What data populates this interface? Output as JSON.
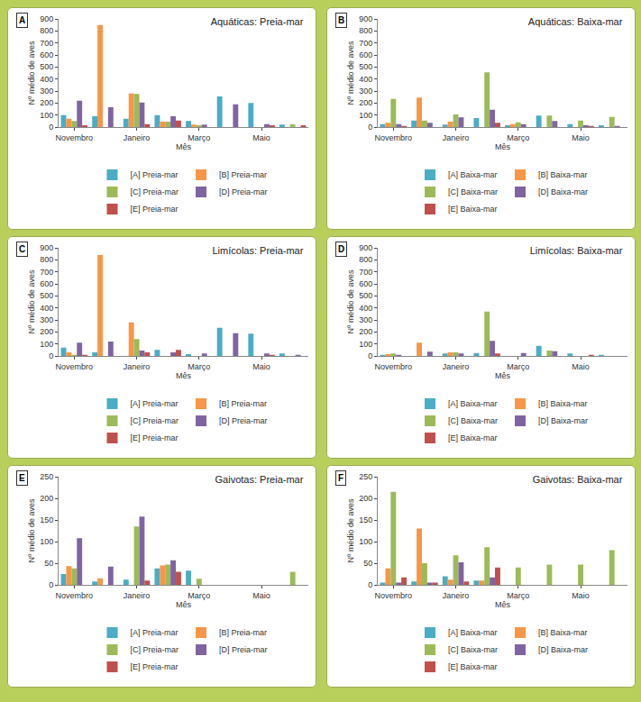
{
  "chart_data": [
    {
      "type": "bar",
      "panel": "A",
      "title": "Aquáticas: Preia-mar",
      "x_label": "Mês",
      "y_label": "Nº médio de aves",
      "categories": [
        "Novembro",
        null,
        "Janeiro",
        null,
        "Março",
        null,
        "Maio",
        null
      ],
      "ylim": [
        0,
        900
      ],
      "yticks": [
        0,
        100,
        200,
        300,
        400,
        500,
        600,
        700,
        800,
        900
      ],
      "grid": false,
      "legend": "bottom",
      "series": [
        {
          "name": "[A] Preia-mar",
          "color": "#4bacc6",
          "values": [
            100,
            90,
            70,
            100,
            50,
            255,
            200,
            20
          ]
        },
        {
          "name": "[B] Preia-mar",
          "color": "#f79646",
          "values": [
            70,
            850,
            280,
            45,
            20,
            null,
            null,
            null
          ]
        },
        {
          "name": "[C] Preia-mar",
          "color": "#9bbb59",
          "values": [
            50,
            null,
            275,
            45,
            15,
            null,
            null,
            25
          ]
        },
        {
          "name": "[D] Preia-mar",
          "color": "#8064a2",
          "values": [
            220,
            165,
            205,
            90,
            20,
            190,
            25,
            null
          ]
        },
        {
          "name": "[E] Preia-mar",
          "color": "#c0504d",
          "values": [
            15,
            null,
            25,
            55,
            null,
            null,
            15,
            15
          ]
        }
      ]
    },
    {
      "type": "bar",
      "panel": "B",
      "title": "Aquáticas: Baixa-mar",
      "x_label": "Mês",
      "y_label": "Nº médio de aves",
      "categories": [
        "Novembro",
        null,
        "Janeiro",
        null,
        "Março",
        null,
        "Maio",
        null
      ],
      "ylim": [
        0,
        900
      ],
      "yticks": [
        0,
        100,
        200,
        300,
        400,
        500,
        600,
        700,
        800,
        900
      ],
      "grid": false,
      "legend": "bottom",
      "series": [
        {
          "name": "[A] Baixa-mar",
          "color": "#4bacc6",
          "values": [
            25,
            55,
            20,
            75,
            15,
            95,
            25,
            15
          ]
        },
        {
          "name": "[B] Baixa-mar",
          "color": "#f79646",
          "values": [
            35,
            245,
            45,
            null,
            25,
            null,
            null,
            null
          ]
        },
        {
          "name": "[C] Baixa-mar",
          "color": "#9bbb59",
          "values": [
            235,
            55,
            105,
            455,
            40,
            95,
            55,
            85
          ]
        },
        {
          "name": "[D] Baixa-mar",
          "color": "#8064a2",
          "values": [
            25,
            35,
            80,
            145,
            25,
            50,
            15,
            10
          ]
        },
        {
          "name": "[E] Baixa-mar",
          "color": "#c0504d",
          "values": [
            10,
            null,
            null,
            35,
            null,
            null,
            10,
            null
          ]
        }
      ]
    },
    {
      "type": "bar",
      "panel": "C",
      "title": "Limícolas: Preia-mar",
      "x_label": "Mês",
      "y_label": "Nº médio de aves",
      "categories": [
        "Novembro",
        null,
        "Janeiro",
        null,
        "Março",
        null,
        "Maio",
        null
      ],
      "ylim": [
        0,
        900
      ],
      "yticks": [
        0,
        100,
        200,
        300,
        400,
        500,
        600,
        700,
        800,
        900
      ],
      "grid": false,
      "legend": "bottom",
      "series": [
        {
          "name": "[A] Preia-mar",
          "color": "#4bacc6",
          "values": [
            70,
            30,
            null,
            50,
            15,
            235,
            185,
            20
          ]
        },
        {
          "name": "[B] Preia-mar",
          "color": "#f79646",
          "values": [
            30,
            840,
            280,
            null,
            null,
            null,
            null,
            null
          ]
        },
        {
          "name": "[C] Preia-mar",
          "color": "#9bbb59",
          "values": [
            10,
            null,
            140,
            null,
            null,
            null,
            null,
            null
          ]
        },
        {
          "name": "[D] Preia-mar",
          "color": "#8064a2",
          "values": [
            110,
            120,
            45,
            30,
            20,
            190,
            20,
            10
          ]
        },
        {
          "name": "[E] Preia-mar",
          "color": "#c0504d",
          "values": [
            10,
            null,
            30,
            50,
            null,
            null,
            10,
            null
          ]
        }
      ]
    },
    {
      "type": "bar",
      "panel": "D",
      "title": "Limícolas: Baixa-mar",
      "x_label": "Mês",
      "y_label": "Nº médio de aves",
      "categories": [
        "Novembro",
        null,
        "Janeiro",
        null,
        "Março",
        null,
        "Maio",
        null
      ],
      "ylim": [
        0,
        900
      ],
      "yticks": [
        0,
        100,
        200,
        300,
        400,
        500,
        600,
        700,
        800,
        900
      ],
      "grid": false,
      "legend": "bottom",
      "series": [
        {
          "name": "[A] Baixa-mar",
          "color": "#4bacc6",
          "values": [
            10,
            null,
            20,
            25,
            null,
            85,
            20,
            10
          ]
        },
        {
          "name": "[B] Baixa-mar",
          "color": "#f79646",
          "values": [
            15,
            110,
            30,
            null,
            null,
            null,
            null,
            null
          ]
        },
        {
          "name": "[C] Baixa-mar",
          "color": "#9bbb59",
          "values": [
            20,
            null,
            30,
            370,
            null,
            45,
            null,
            null
          ]
        },
        {
          "name": "[D] Baixa-mar",
          "color": "#8064a2",
          "values": [
            10,
            35,
            20,
            125,
            25,
            40,
            null,
            null
          ]
        },
        {
          "name": "[E] Baixa-mar",
          "color": "#c0504d",
          "values": [
            null,
            null,
            null,
            20,
            null,
            null,
            10,
            null
          ]
        }
      ]
    },
    {
      "type": "bar",
      "panel": "E",
      "title": "Gaivotas: Preia-mar",
      "x_label": "Mês",
      "y_label": "Nº médio de aves",
      "categories": [
        "Novembro",
        null,
        "Janeiro",
        null,
        "Março",
        null,
        "Maio",
        null
      ],
      "ylim": [
        0,
        250
      ],
      "yticks": [
        0,
        50,
        100,
        150,
        200,
        250
      ],
      "grid": false,
      "legend": "bottom",
      "series": [
        {
          "name": "[A] Preia-mar",
          "color": "#4bacc6",
          "values": [
            25,
            8,
            12,
            38,
            33,
            null,
            null,
            null
          ]
        },
        {
          "name": "[B] Preia-mar",
          "color": "#f79646",
          "values": [
            43,
            15,
            null,
            45,
            null,
            null,
            null,
            null
          ]
        },
        {
          "name": "[C] Preia-mar",
          "color": "#9bbb59",
          "values": [
            38,
            null,
            135,
            47,
            14,
            null,
            null,
            30
          ]
        },
        {
          "name": "[D] Preia-mar",
          "color": "#8064a2",
          "values": [
            108,
            42,
            158,
            57,
            null,
            null,
            null,
            null
          ]
        },
        {
          "name": "[E] Preia-mar",
          "color": "#c0504d",
          "values": [
            null,
            null,
            10,
            30,
            null,
            null,
            null,
            null
          ]
        }
      ]
    },
    {
      "type": "bar",
      "panel": "F",
      "title": "Gaivotas: Baixa-mar",
      "x_label": "Mês",
      "y_label": "Nº médio de aves",
      "categories": [
        "Novembro",
        null,
        "Janeiro",
        null,
        "Março",
        null,
        "Maio",
        null
      ],
      "ylim": [
        0,
        250
      ],
      "yticks": [
        0,
        50,
        100,
        150,
        200,
        250
      ],
      "grid": false,
      "legend": "bottom",
      "series": [
        {
          "name": "[A] Baixa-mar",
          "color": "#4bacc6",
          "values": [
            5,
            8,
            20,
            10,
            null,
            null,
            null,
            null
          ]
        },
        {
          "name": "[B] Baixa-mar",
          "color": "#f79646",
          "values": [
            38,
            130,
            12,
            10,
            null,
            null,
            null,
            null
          ]
        },
        {
          "name": "[C] Baixa-mar",
          "color": "#9bbb59",
          "values": [
            215,
            50,
            68,
            87,
            40,
            47,
            47,
            80
          ]
        },
        {
          "name": "[D] Baixa-mar",
          "color": "#8064a2",
          "values": [
            5,
            5,
            52,
            17,
            null,
            null,
            null,
            null
          ]
        },
        {
          "name": "[E] Baixa-mar",
          "color": "#c0504d",
          "values": [
            17,
            5,
            8,
            40,
            null,
            null,
            null,
            null
          ]
        }
      ]
    }
  ]
}
